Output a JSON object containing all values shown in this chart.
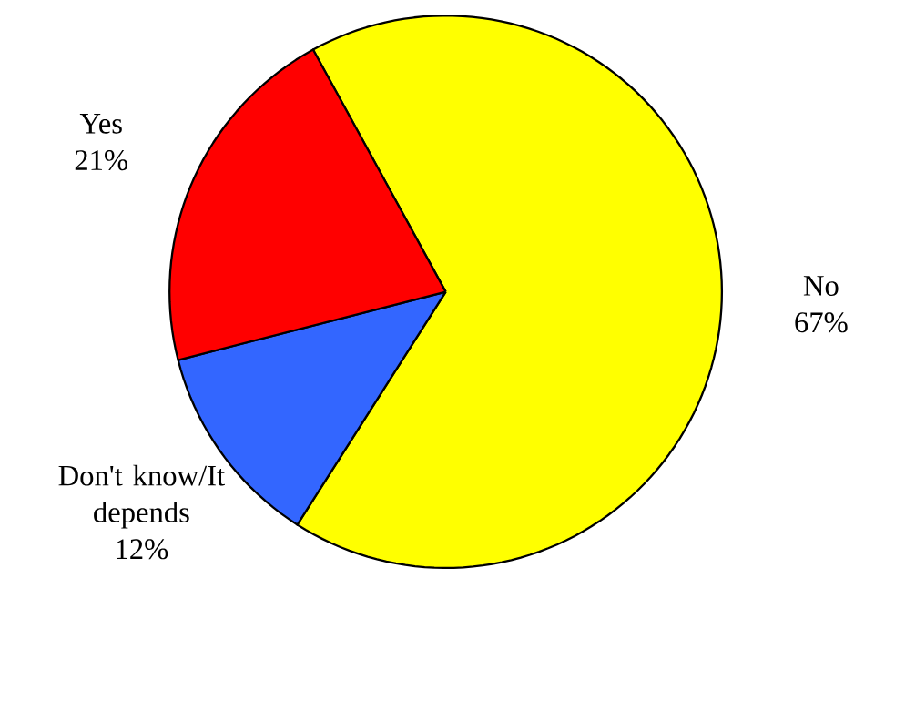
{
  "chart_data": {
    "type": "pie",
    "categories": [
      "No",
      "Don't know/It depends",
      "Yes"
    ],
    "values": [
      67,
      12,
      21
    ],
    "colors": [
      "#ffff00",
      "#3366ff",
      "#ff0000"
    ],
    "value_labels": [
      "67%",
      "12%",
      "21%"
    ]
  }
}
